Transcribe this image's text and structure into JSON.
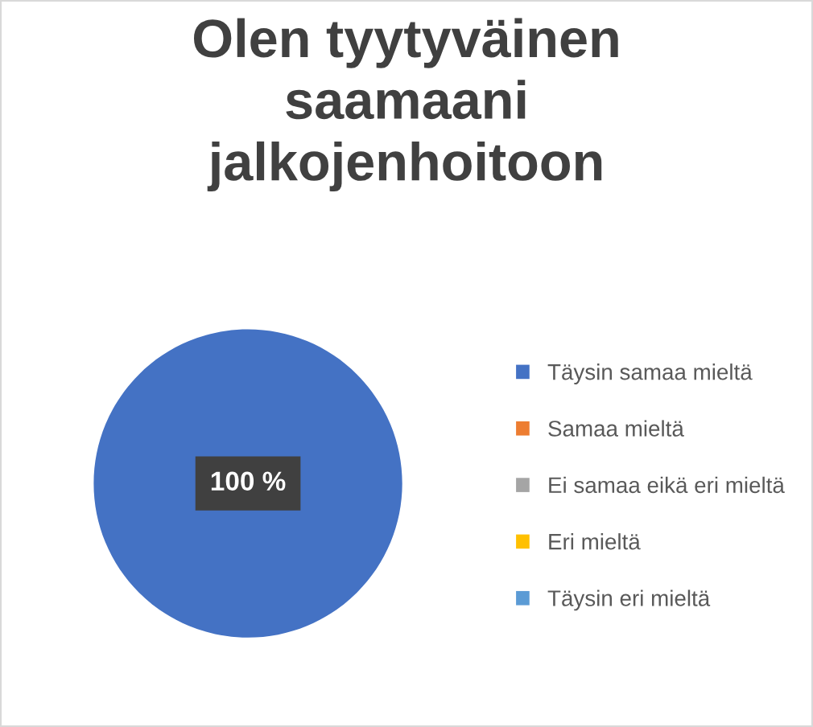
{
  "chart_data": {
    "type": "pie",
    "title": "Olen tyytyväinen saamaani jalkojenhoitoon",
    "categories": [
      "Täysin samaa mieltä",
      "Samaa mieltä",
      "Ei samaa eikä eri mieltä",
      "Eri mieltä",
      "Täysin eri mieltä"
    ],
    "values": [
      100,
      0,
      0,
      0,
      0
    ],
    "colors": [
      "#4472c4",
      "#ed7d31",
      "#a5a5a5",
      "#ffc000",
      "#5b9bd5"
    ],
    "value_labels": [
      "100 %",
      null,
      null,
      null,
      null
    ],
    "legend": "right"
  }
}
